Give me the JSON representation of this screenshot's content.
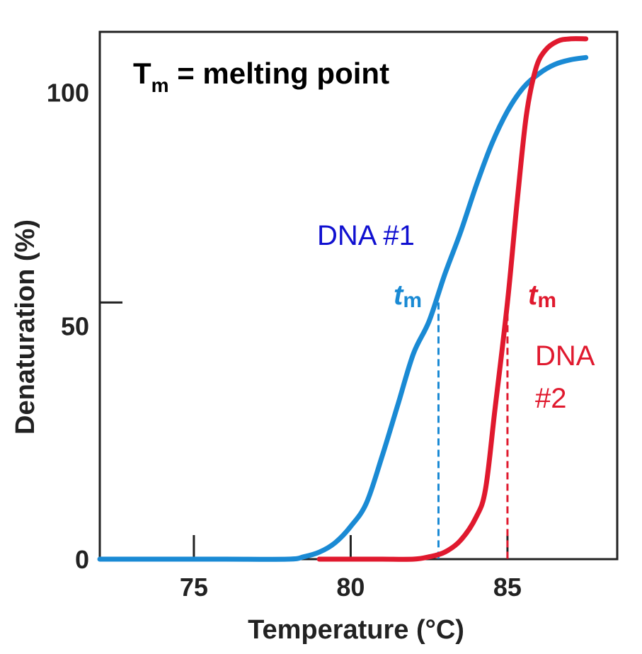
{
  "chart_data": {
    "type": "line",
    "title": "T",
    "title_subscript": "m",
    "title_rest": " = melting point",
    "xlabel": "Temperature (°C)",
    "ylabel": "Denaturation (%)",
    "xlim": [
      72,
      88.5
    ],
    "ylim": [
      0,
      113
    ],
    "x_ticks": [
      75,
      80,
      85
    ],
    "x_tick_labels": [
      "75",
      "80",
      "85"
    ],
    "y_ticks": [
      0,
      50,
      100
    ],
    "y_tick_labels": [
      "0",
      "50",
      "100"
    ],
    "grid": false,
    "series": [
      {
        "name": "DNA #1",
        "color": "#1a8ad4",
        "tm": 82.8,
        "tm_y": 55,
        "x": [
          72,
          74,
          76,
          78,
          78.5,
          79,
          79.5,
          80,
          80.5,
          81,
          81.5,
          82,
          82.5,
          83,
          83.5,
          84,
          84.5,
          85,
          85.5,
          86,
          86.5,
          87,
          87.5
        ],
        "y": [
          0,
          0,
          0,
          0,
          0.5,
          1.5,
          3.5,
          7,
          12,
          22,
          33,
          44,
          51,
          61,
          70,
          80,
          89,
          96,
          101,
          104,
          106,
          107,
          107.5
        ]
      },
      {
        "name": "DNA #2",
        "color": "#e0192e",
        "tm": 85.0,
        "tm_y": 55,
        "x": [
          79,
          80,
          81,
          82,
          82.5,
          83,
          83.5,
          84,
          84.3,
          84.6,
          85,
          85.3,
          85.6,
          85.9,
          86.2,
          86.6,
          87,
          87.5
        ],
        "y": [
          0,
          0,
          0,
          0,
          0.5,
          1.5,
          4,
          9,
          15,
          32,
          55,
          76,
          95,
          105,
          109,
          111,
          111.5,
          111.5
        ]
      }
    ],
    "annotations": [
      {
        "text": "DNA #1",
        "color": "#1010d0"
      },
      {
        "text_line1": "DNA",
        "text_line2": "#2",
        "color": "#e0192e"
      },
      {
        "text": "t",
        "subscript": "m",
        "color": "#1a8ad4"
      },
      {
        "text": "t",
        "subscript": "m",
        "color": "#e0192e"
      }
    ]
  }
}
